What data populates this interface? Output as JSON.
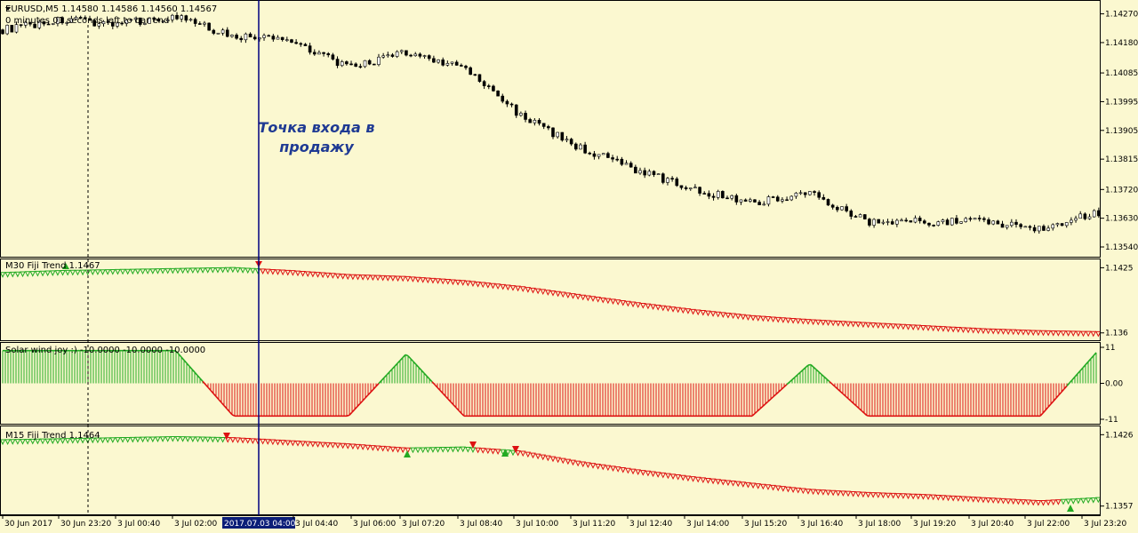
{
  "main_pane": {
    "symbol_line": "EURUSD,M5  1.14580 1.14586 1.14560 1.14567",
    "timer_line": "0 minutes 01 seconds left to bar end",
    "annotation_line1": "Точка входа в",
    "annotation_line2": "продажу"
  },
  "m30_pane": {
    "label": "M30 Fiji Trend 1.1467"
  },
  "solar_pane": {
    "label": "Solar wind joy :) -10.0000 -10.0000 -10.0000"
  },
  "m15_pane": {
    "label": "M15 Fiji Trend 1.1464"
  },
  "time_highlight": "2017.07.03 04:00",
  "colors": {
    "background": "#fbf8d0",
    "bull": "#22aa22",
    "bear": "#dd1111",
    "candle": "#000000",
    "vline": "#000080",
    "highlight": "#0b1e78"
  },
  "chart_data": [
    {
      "type": "line",
      "title": "EURUSD,M5",
      "yticks": [
        "1.14270",
        "1.14180",
        "1.14085",
        "1.13995",
        "1.13905",
        "1.13815",
        "1.13720",
        "1.13630",
        "1.13540"
      ],
      "ylim": [
        1.1354,
        1.1428
      ],
      "x": [
        "30 Jun 2017",
        "30 Jun 23:20",
        "3 Jul 00:40",
        "3 Jul 02:00",
        "2017.07.03 04:00",
        "3 Jul 04:40",
        "3 Jul 06:00",
        "3 Jul 07:20",
        "3 Jul 08:40",
        "3 Jul 10:00",
        "3 Jul 11:20",
        "3 Jul 12:40",
        "3 Jul 14:00",
        "3 Jul 15:20",
        "3 Jul 16:40",
        "3 Jul 18:00",
        "3 Jul 19:20",
        "3 Jul 20:40",
        "3 Jul 22:00",
        "3 Jul 23:20"
      ],
      "series": [
        {
          "name": "EURUSD,M5",
          "values": [
            1.1422,
            1.1425,
            1.1424,
            1.1426,
            1.142,
            1.1419,
            1.141,
            1.1415,
            1.141,
            1.1395,
            1.1385,
            1.1378,
            1.1372,
            1.1368,
            1.1371,
            1.1362,
            1.1362,
            1.1362,
            1.136,
            1.1365
          ]
        }
      ]
    },
    {
      "type": "line",
      "title": "M30 Fiji Trend 1.1467",
      "yticks": [
        "1.1425",
        "1.136"
      ],
      "ylim": [
        1.1358,
        1.1428
      ],
      "series": [
        {
          "name": "M30 Fiji Trend 1.1467",
          "values": [
            1.1418,
            1.142,
            1.1421,
            1.1422,
            1.1423,
            1.142,
            1.1416,
            1.1414,
            1.141,
            1.1404,
            1.1396,
            1.1388,
            1.1381,
            1.1375,
            1.1371,
            1.1368,
            1.1365,
            1.1362,
            1.136,
            1.1359
          ]
        }
      ]
    },
    {
      "type": "bar",
      "title": "Solar wind joy :) -10.0000 -10.0000 -10.0000",
      "yticks": [
        "11",
        "0.00",
        "-11"
      ],
      "ylim": [
        -11,
        11
      ],
      "series": [
        {
          "name": "Solar wind joy :)",
          "values": [
            10,
            10,
            10,
            10,
            -10,
            -10,
            -10,
            9,
            -10,
            -10,
            -10,
            -10,
            -10,
            -10,
            6,
            -10,
            -10,
            -10,
            -10,
            10
          ]
        }
      ]
    },
    {
      "type": "line",
      "title": "M15 Fiji Trend 1.1464",
      "yticks": [
        "1.1426",
        "1.1357"
      ],
      "ylim": [
        1.1355,
        1.1428
      ],
      "series": [
        {
          "name": "M15 Fiji Trend 1.1464",
          "values": [
            1.1419,
            1.142,
            1.1421,
            1.1422,
            1.1421,
            1.1418,
            1.1415,
            1.1411,
            1.1412,
            1.1408,
            1.1398,
            1.139,
            1.1383,
            1.1377,
            1.1371,
            1.1368,
            1.1366,
            1.1363,
            1.136,
            1.1363
          ]
        }
      ]
    }
  ]
}
